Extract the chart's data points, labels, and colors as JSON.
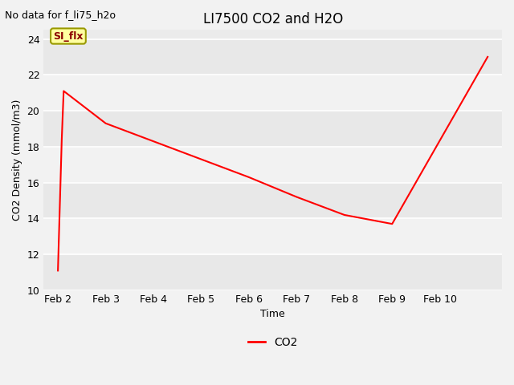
{
  "title": "LI7500 CO2 and H2O",
  "no_data_text": "No data for f_li75_h2o",
  "annotation_text": "SI_flx",
  "xlabel": "Time",
  "ylabel": "CO2 Density (mmol/m3)",
  "ylim": [
    10,
    24.5
  ],
  "yticks": [
    10,
    12,
    14,
    16,
    18,
    20,
    22,
    24
  ],
  "x_labels": [
    "Feb 2",
    "Feb 3",
    "Feb 4",
    "Feb 5",
    "Feb 6",
    "Feb 7",
    "Feb 8",
    "Feb 9",
    "Feb 10"
  ],
  "co2_x": [
    0.0,
    0.08,
    0.12,
    1.0,
    2.0,
    3.0,
    4.0,
    5.0,
    6.0,
    7.0,
    9.0
  ],
  "co2_y": [
    11.1,
    18.4,
    21.1,
    19.3,
    18.3,
    17.3,
    16.3,
    15.2,
    14.2,
    13.7,
    23.0
  ],
  "line_color": "#ff0000",
  "line_style": "-",
  "line_width": 1.5,
  "plot_bg_color": "#ebebeb",
  "fig_bg_color": "#f2f2f2",
  "annotation_bg": "#ffffa0",
  "annotation_fg": "#8b0000",
  "annotation_border": "#999900",
  "title_fontsize": 12,
  "axis_label_fontsize": 9,
  "tick_fontsize": 9,
  "legend_fontsize": 10,
  "no_data_fontsize": 9
}
